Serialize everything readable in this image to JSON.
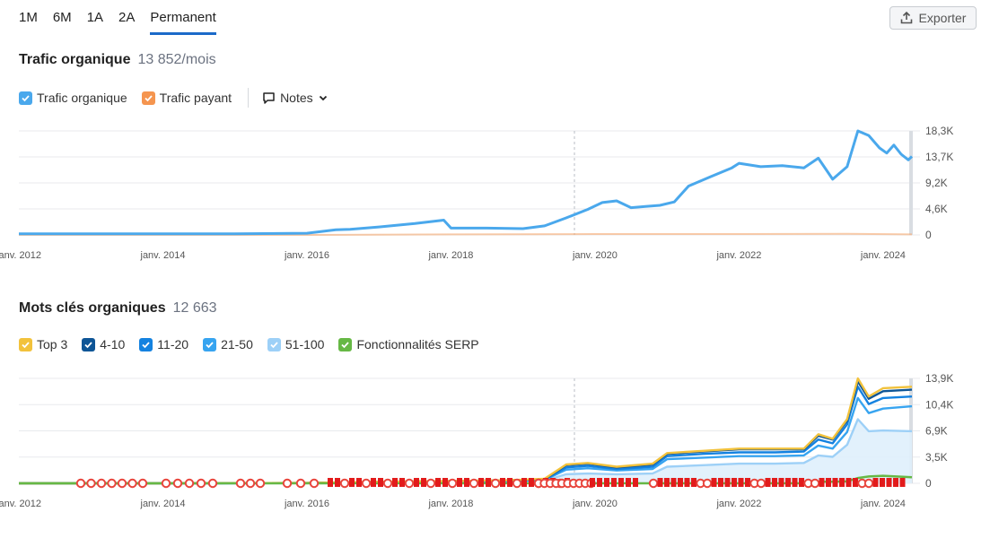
{
  "periods": {
    "p1": "1M",
    "p2": "6M",
    "p3": "1A",
    "p4": "2A",
    "p5": "Permanent",
    "active": "Permanent"
  },
  "export_label": "Exporter",
  "traffic": {
    "title": "Trafic organique",
    "value": "13 852/mois",
    "legend_organic": "Trafic organique",
    "legend_paid": "Trafic payant",
    "notes_label": "Notes"
  },
  "keywords": {
    "title": "Mots clés organiques",
    "value": "12 663",
    "legend": {
      "top3": "Top 3",
      "r4_10": "4-10",
      "r11_20": "11-20",
      "r21_50": "21-50",
      "r51_100": "51-100",
      "serp": "Fonctionnalités SERP"
    }
  },
  "colors": {
    "organic": "#4aa8ec",
    "paid": "#f5a96f",
    "top3": "#f2c23c",
    "r4_10": "#0e5596",
    "r11_20": "#1482e0",
    "r21_50": "#37a4f0",
    "r51_100": "#9dd0f7",
    "serp": "#66b845"
  },
  "chart_data": [
    {
      "type": "line",
      "title": "",
      "x_ticks": [
        "janv. 2012",
        "janv. 2014",
        "janv. 2016",
        "janv. 2018",
        "janv. 2020",
        "janv. 2022",
        "janv. 2024"
      ],
      "y_ticks": [
        "18,3K",
        "13,7K",
        "9,2K",
        "4,6K",
        "0"
      ],
      "ylim": [
        0,
        18300
      ],
      "series": [
        {
          "name": "Trafic organique",
          "color": "#4aa8ec",
          "x": [
            2012,
            2013,
            2014,
            2015,
            2016,
            2016.4,
            2016.6,
            2017,
            2017.5,
            2017.9,
            2018,
            2018.5,
            2019,
            2019.3,
            2019.6,
            2019.9,
            2020.1,
            2020.3,
            2020.5,
            2020.7,
            2020.9,
            2021.1,
            2021.3,
            2021.6,
            2021.9,
            2022,
            2022.3,
            2022.6,
            2022.9,
            2023.1,
            2023.3,
            2023.5,
            2023.65,
            2023.8,
            2023.95,
            2024.05,
            2024.15,
            2024.25,
            2024.35,
            2024.4
          ],
          "y": [
            200,
            200,
            200,
            200,
            300,
            900,
            1000,
            1400,
            2000,
            2600,
            1200,
            1200,
            1100,
            1600,
            3000,
            4500,
            5700,
            6000,
            4800,
            5000,
            5200,
            5800,
            8600,
            10200,
            11800,
            12600,
            12000,
            12200,
            11800,
            13500,
            9800,
            12000,
            18300,
            17500,
            15300,
            14400,
            15800,
            14200,
            13200,
            13800
          ]
        },
        {
          "name": "Trafic payant",
          "color": "#f5a96f",
          "x": [
            2012,
            2016,
            2018,
            2020,
            2022,
            2023.5,
            2024.4
          ],
          "y": [
            0,
            0,
            100,
            150,
            150,
            200,
            100
          ]
        }
      ]
    },
    {
      "type": "area",
      "title": "",
      "x_ticks": [
        "janv. 2012",
        "janv. 2014",
        "janv. 2016",
        "janv. 2018",
        "janv. 2020",
        "janv. 2022",
        "janv. 2024"
      ],
      "y_ticks": [
        "13,9K",
        "10,4K",
        "6,9K",
        "3,5K",
        "0"
      ],
      "ylim": [
        0,
        13900
      ],
      "x": [
        2012,
        2014,
        2016,
        2017,
        2018,
        2018.8,
        2019.3,
        2019.6,
        2019.9,
        2020.3,
        2020.8,
        2021,
        2021.5,
        2022,
        2022.5,
        2022.9,
        2023.1,
        2023.3,
        2023.5,
        2023.65,
        2023.8,
        2024,
        2024.4
      ],
      "series": [
        {
          "name": "Top 3",
          "color": "#f2c23c",
          "values": [
            0,
            0,
            50,
            200,
            300,
            400,
            600,
            2500,
            2700,
            2200,
            2600,
            4000,
            4300,
            4600,
            4600,
            4600,
            6500,
            5900,
            8500,
            13900,
            11500,
            12600,
            12800
          ]
        },
        {
          "name": "4-10",
          "color": "#0e5596",
          "values": [
            0,
            0,
            50,
            200,
            300,
            400,
            550,
            2400,
            2600,
            2100,
            2500,
            3900,
            4200,
            4500,
            4500,
            4500,
            6300,
            5800,
            8300,
            13500,
            11200,
            12200,
            12400
          ]
        },
        {
          "name": "11-20",
          "color": "#1482e0",
          "values": [
            0,
            0,
            40,
            180,
            250,
            350,
            500,
            2100,
            2300,
            1900,
            2200,
            3600,
            3900,
            4100,
            4100,
            4200,
            5800,
            5300,
            7800,
            12800,
            10500,
            11300,
            11500
          ]
        },
        {
          "name": "21-50",
          "color": "#37a4f0",
          "values": [
            0,
            0,
            30,
            150,
            200,
            300,
            450,
            1800,
            2000,
            1700,
            1900,
            3200,
            3400,
            3600,
            3600,
            3700,
            5000,
            4600,
            6800,
            11300,
            9300,
            9900,
            10200
          ]
        },
        {
          "name": "51-100",
          "color": "#9dd0f7",
          "values": [
            0,
            0,
            20,
            100,
            150,
            200,
            350,
            1200,
            1300,
            1200,
            1300,
            2200,
            2400,
            2600,
            2600,
            2700,
            3700,
            3500,
            5100,
            8500,
            6900,
            7000,
            6900
          ]
        },
        {
          "name": "Fonctionnalités SERP",
          "color": "#66b845",
          "values": [
            0,
            0,
            0,
            0,
            0,
            0,
            0,
            0,
            0,
            0,
            0,
            0,
            0,
            0,
            0,
            0,
            200,
            200,
            250,
            700,
            900,
            1000,
            800
          ]
        }
      ]
    }
  ]
}
